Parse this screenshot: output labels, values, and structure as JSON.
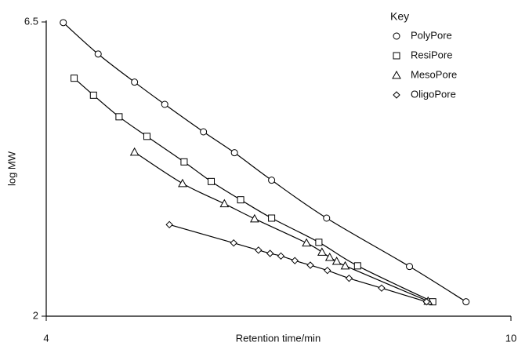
{
  "chart_data": {
    "type": "line",
    "xlabel": "Retention time/min",
    "ylabel": "log MW",
    "xlim": [
      4,
      10
    ],
    "xticks": [
      4,
      10
    ],
    "ylim": [
      2,
      6.5
    ],
    "yticks": [
      2,
      6.5
    ],
    "grid": false,
    "legend_title": "Key",
    "legend_position": "upper right",
    "series": [
      {
        "name": "PolyPore",
        "color": "#000000",
        "marker": "circle",
        "x": [
          4.22,
          4.67,
          5.14,
          5.53,
          6.03,
          6.43,
          6.91,
          7.62,
          8.69,
          9.42
        ],
        "values": [
          6.49,
          6.01,
          5.58,
          5.24,
          4.82,
          4.5,
          4.08,
          3.5,
          2.76,
          2.22
        ]
      },
      {
        "name": "ResiPore",
        "color": "#000000",
        "marker": "square",
        "x": [
          4.36,
          4.61,
          4.94,
          5.3,
          5.78,
          6.13,
          6.51,
          6.91,
          7.52,
          8.02,
          8.99
        ],
        "values": [
          5.64,
          5.38,
          5.05,
          4.75,
          4.36,
          4.06,
          3.78,
          3.5,
          3.13,
          2.77,
          2.22
        ]
      },
      {
        "name": "MesoPore",
        "color": "#000000",
        "marker": "triangle",
        "x": [
          5.14,
          5.76,
          6.3,
          6.69,
          7.36,
          7.56,
          7.66,
          7.75,
          7.86,
          8.93
        ],
        "values": [
          4.51,
          4.03,
          3.72,
          3.49,
          3.12,
          2.98,
          2.9,
          2.84,
          2.77,
          2.23
        ]
      },
      {
        "name": "OligoPore",
        "color": "#000000",
        "marker": "diamond",
        "x": [
          5.59,
          6.42,
          6.74,
          6.89,
          7.03,
          7.21,
          7.41,
          7.63,
          7.91,
          8.33,
          8.91
        ],
        "values": [
          3.4,
          3.12,
          3.01,
          2.96,
          2.92,
          2.85,
          2.78,
          2.7,
          2.58,
          2.43,
          2.22
        ]
      }
    ]
  }
}
